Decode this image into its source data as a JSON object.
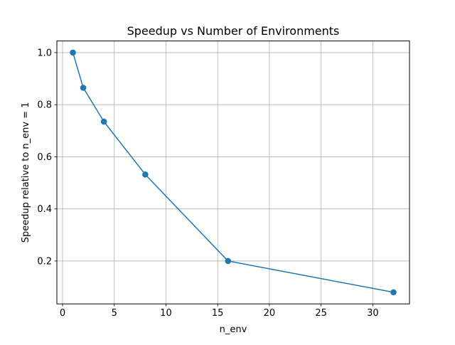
{
  "chart_data": {
    "type": "line",
    "title": "Speedup vs Number of Environments",
    "xlabel": "n_env",
    "ylabel": "Speedup relative to n_env = 1",
    "x": [
      1,
      2,
      4,
      8,
      16,
      32
    ],
    "series": [
      {
        "values": [
          1.0,
          0.865,
          0.735,
          0.532,
          0.2,
          0.08
        ],
        "color": "#1f77b4",
        "marker": "circle"
      }
    ],
    "xlim": [
      -0.55,
      33.55
    ],
    "ylim": [
      0.0354,
      1.0446
    ],
    "xticks": [
      0,
      5,
      10,
      15,
      20,
      25,
      30
    ],
    "yticks": [
      0.2,
      0.4,
      0.6,
      0.8,
      1.0
    ],
    "yticks_labels": [
      "0.2",
      "0.4",
      "0.6",
      "0.8",
      "1.0"
    ],
    "grid": true,
    "legend": false
  }
}
